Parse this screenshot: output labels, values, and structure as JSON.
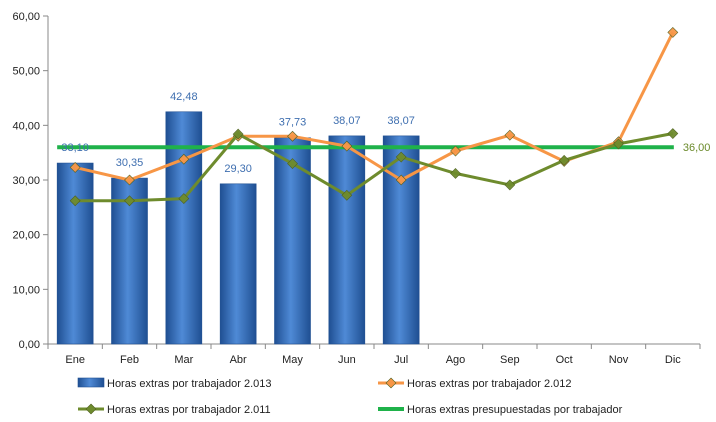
{
  "chart_data": {
    "type": "bar",
    "categories": [
      "Ene",
      "Feb",
      "Mar",
      "Abr",
      "May",
      "Jun",
      "Jul",
      "Ago",
      "Sep",
      "Oct",
      "Nov",
      "Dic"
    ],
    "ylim": [
      0,
      60
    ],
    "yticks": [
      "0,00",
      "10,00",
      "20,00",
      "30,00",
      "40,00",
      "50,00",
      "60,00"
    ],
    "series": [
      {
        "name": "Horas extras por trabajador 2.013",
        "kind": "bar",
        "color": "#3f78c4",
        "values": [
          33.1,
          30.35,
          42.48,
          29.3,
          37.73,
          38.07,
          38.07,
          null,
          null,
          null,
          null,
          null
        ],
        "labels": [
          "33,10",
          "30,35",
          "42,48",
          "29,30",
          "37,73",
          "38,07",
          "38,07",
          "",
          "",
          "",
          "",
          ""
        ]
      },
      {
        "name": "Horas extras por trabajador 2.012",
        "kind": "line",
        "color": "#f79646",
        "values": [
          32.3,
          30.0,
          33.8,
          38.0,
          38.0,
          36.2,
          30.0,
          35.3,
          38.2,
          33.4,
          37.0,
          57.0
        ]
      },
      {
        "name": "Horas extras por trabajador 2.011",
        "kind": "line",
        "color": "#6e8b2d",
        "values": [
          26.2,
          26.2,
          26.6,
          38.4,
          33.0,
          27.2,
          34.2,
          31.2,
          29.1,
          33.6,
          36.6,
          38.5
        ]
      },
      {
        "name": "Horas extras presupuestadas por trabajador",
        "kind": "target",
        "color": "#1fb24a",
        "value": 36.0,
        "label": "36,00"
      }
    ]
  }
}
